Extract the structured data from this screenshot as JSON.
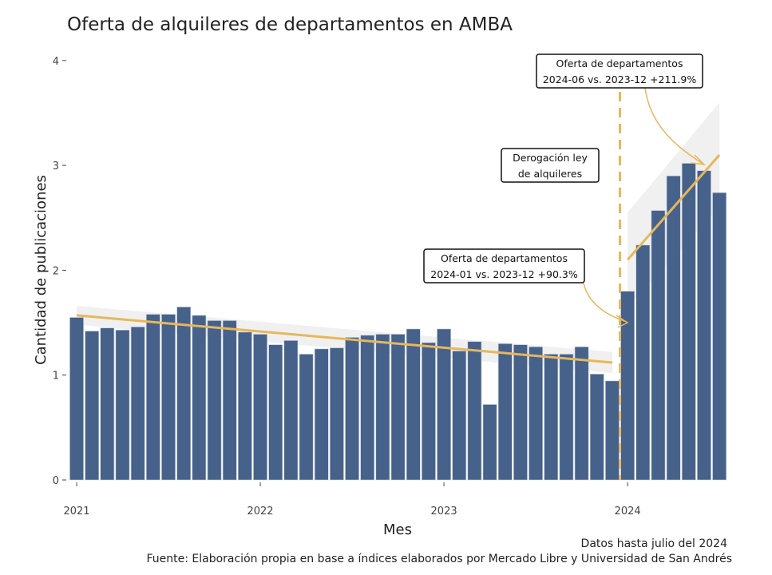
{
  "chart_data": {
    "type": "bar",
    "title": "Oferta de alquileres de departamentos en AMBA",
    "xlabel": "Mes",
    "ylabel": "Cantidad de publicaciones",
    "ylim": [
      0,
      4
    ],
    "yticks": [
      "0",
      "1",
      "2",
      "3",
      "4"
    ],
    "xticks": [
      {
        "label": "2021",
        "month": "2021-01"
      },
      {
        "label": "2022",
        "month": "2022-01"
      },
      {
        "label": "2023",
        "month": "2023-01"
      },
      {
        "label": "2024",
        "month": "2024-01"
      }
    ],
    "grid": false,
    "bar_color": "#46618a",
    "trend_color": "#e6b75c",
    "categories": [
      "2021-01",
      "2021-02",
      "2021-03",
      "2021-04",
      "2021-05",
      "2021-06",
      "2021-07",
      "2021-08",
      "2021-09",
      "2021-10",
      "2021-11",
      "2021-12",
      "2022-01",
      "2022-02",
      "2022-03",
      "2022-04",
      "2022-05",
      "2022-06",
      "2022-07",
      "2022-08",
      "2022-09",
      "2022-10",
      "2022-11",
      "2022-12",
      "2023-01",
      "2023-02",
      "2023-03",
      "2023-04",
      "2023-05",
      "2023-06",
      "2023-07",
      "2023-08",
      "2023-09",
      "2023-10",
      "2023-11",
      "2023-12",
      "2024-01",
      "2024-02",
      "2024-03",
      "2024-04",
      "2024-05",
      "2024-06",
      "2024-07"
    ],
    "values": [
      1.55,
      1.42,
      1.45,
      1.43,
      1.46,
      1.58,
      1.58,
      1.65,
      1.57,
      1.52,
      1.52,
      1.41,
      1.39,
      1.29,
      1.33,
      1.2,
      1.25,
      1.26,
      1.36,
      1.38,
      1.39,
      1.39,
      1.44,
      1.31,
      1.44,
      1.23,
      1.32,
      0.72,
      1.3,
      1.29,
      1.27,
      1.2,
      1.2,
      1.27,
      1.01,
      0.945,
      1.8,
      2.24,
      2.57,
      2.9,
      3.02,
      2.95,
      2.74
    ],
    "trends": [
      {
        "from": "2021-01",
        "to": "2023-12",
        "start": 1.57,
        "end": 1.12
      },
      {
        "from": "2024-01",
        "to": "2024-07",
        "start": 2.1,
        "end": 3.1
      }
    ],
    "vline": {
      "between": [
        "2023-12",
        "2024-01"
      ],
      "style": "dashed"
    },
    "annotations": [
      {
        "lines": [
          "Oferta de departamentos",
          "2024-06 vs. 2023-12 +211.9%"
        ]
      },
      {
        "lines": [
          "Derogación ley",
          "de alquileres"
        ]
      },
      {
        "lines": [
          "Oferta de departamentos",
          "2024-01 vs. 2023-12 +90.3%"
        ]
      }
    ]
  },
  "captions": {
    "data_until": "Datos hasta julio del 2024",
    "source": "Fuente: Elaboración propia en base a índices elaborados por Mercado Libre y Universidad de San Andrés"
  }
}
